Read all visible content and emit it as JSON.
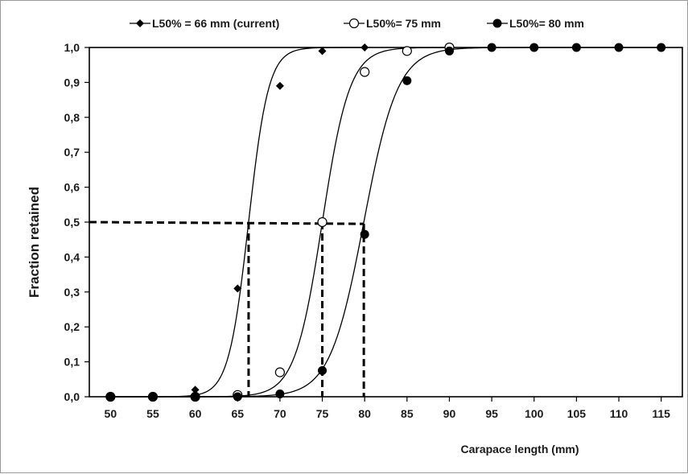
{
  "chart_data": {
    "type": "line",
    "xlabel": "Carapace length (mm)",
    "ylabel": "Fraction  retained",
    "xlim": [
      47.5,
      117.5
    ],
    "ylim": [
      0,
      1
    ],
    "x_ticks": [
      50,
      55,
      60,
      65,
      70,
      75,
      80,
      85,
      90,
      95,
      100,
      105,
      110,
      115
    ],
    "x_tick_labels": [
      "50",
      "55",
      "60",
      "65",
      "70",
      "75",
      "80",
      "85",
      "90",
      "95",
      "100",
      "105",
      "110",
      "115"
    ],
    "y_ticks": [
      0,
      0.1,
      0.2,
      0.3,
      0.4,
      0.5,
      0.6,
      0.7,
      0.8,
      0.9,
      1.0
    ],
    "y_tick_labels": [
      "0,0",
      "0,1",
      "0,2",
      "0,3",
      "0,4",
      "0,5",
      "0,6",
      "0,7",
      "0,8",
      "0,9",
      "1,0"
    ],
    "grid": false,
    "legend_position": "top",
    "series": [
      {
        "name": "L50% = 66 mm (current)",
        "marker": "diamond",
        "color": "#000000",
        "l50": 66.3,
        "slope": 0.85,
        "x": [
          50,
          55,
          60,
          65,
          70,
          75,
          80
        ],
        "values": [
          0.0,
          0.0,
          0.02,
          0.31,
          0.89,
          0.99,
          1.0
        ]
      },
      {
        "name": "L50%= 75 mm",
        "marker": "circle-open",
        "color": "#000000",
        "l50": 75.0,
        "slope": 0.62,
        "x": [
          50,
          55,
          60,
          65,
          70,
          75,
          80,
          85,
          90
        ],
        "values": [
          0.0,
          0.0,
          0.0,
          0.005,
          0.07,
          0.5,
          0.93,
          0.99,
          1.0
        ]
      },
      {
        "name": "L50%= 80 mm",
        "marker": "circle-filled",
        "color": "#000000",
        "l50": 79.9,
        "slope": 0.5,
        "x": [
          50,
          55,
          60,
          65,
          70,
          75,
          80,
          85,
          90,
          95,
          100,
          105,
          110,
          115
        ],
        "values": [
          0.0,
          0.0,
          0.0,
          0.0,
          0.008,
          0.075,
          0.465,
          0.905,
          0.99,
          1.0,
          1.0,
          1.0,
          1.0,
          1.0
        ]
      }
    ],
    "reference_lines": [
      {
        "x": 66.3,
        "y": 0.5
      },
      {
        "x": 75.0,
        "y": 0.5
      },
      {
        "x": 79.9,
        "y": 0.495
      }
    ]
  }
}
